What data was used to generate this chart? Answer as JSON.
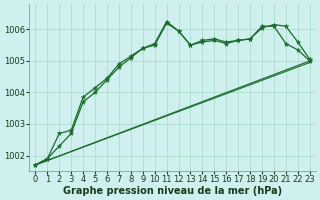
{
  "title": "Graphe pression niveau de la mer (hPa)",
  "background_color": "#cff0ee",
  "grid_color": "#aaddcc",
  "line_color": "#1a6b2a",
  "xlim": [
    -0.5,
    23.5
  ],
  "ylim": [
    1001.5,
    1006.8
  ],
  "yticks": [
    1002,
    1003,
    1004,
    1005,
    1006
  ],
  "xticks": [
    0,
    1,
    2,
    3,
    4,
    5,
    6,
    7,
    8,
    9,
    10,
    11,
    12,
    13,
    14,
    15,
    16,
    17,
    18,
    19,
    20,
    21,
    22,
    23
  ],
  "series": [
    {
      "x": [
        0,
        1,
        2,
        3,
        4,
        5,
        6,
        7,
        8,
        9,
        10,
        11,
        12,
        13,
        14,
        15,
        16,
        17,
        18,
        19,
        20,
        21,
        22,
        23
      ],
      "y": [
        1001.7,
        1001.9,
        1002.3,
        1002.7,
        1003.7,
        1004.0,
        1004.4,
        1004.8,
        1005.1,
        1005.4,
        1005.5,
        1006.2,
        1005.95,
        1005.5,
        1005.6,
        1005.65,
        1005.55,
        1005.65,
        1005.7,
        1006.1,
        1006.1,
        1005.55,
        1005.35,
        1005.0
      ],
      "marker": true
    },
    {
      "x": [
        0,
        1,
        2,
        3,
        4,
        5,
        6,
        7,
        8,
        9,
        10,
        11,
        12,
        13,
        14,
        15,
        16,
        17,
        18,
        19,
        20,
        21,
        22,
        23
      ],
      "y": [
        1001.7,
        1001.9,
        1002.7,
        1002.8,
        1003.85,
        1004.15,
        1004.45,
        1004.9,
        1005.15,
        1005.4,
        1005.55,
        1006.25,
        1005.95,
        1005.5,
        1005.65,
        1005.7,
        1005.6,
        1005.65,
        1005.7,
        1006.05,
        1006.15,
        1006.1,
        1005.6,
        1005.05
      ],
      "marker": true
    },
    {
      "x": [
        0,
        23
      ],
      "y": [
        1001.7,
        1005.0
      ],
      "marker": false
    },
    {
      "x": [
        0,
        23
      ],
      "y": [
        1001.7,
        1004.95
      ],
      "marker": false
    }
  ],
  "xlabel_fontsize": 7,
  "xlabel_fontweight": "bold",
  "tick_fontsize": 6,
  "ytick_fontsize": 6
}
